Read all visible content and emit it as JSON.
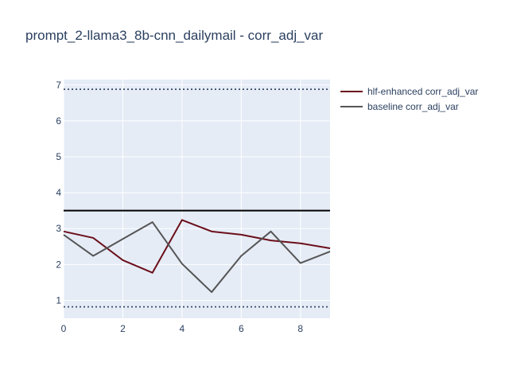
{
  "chart_data": {
    "type": "line",
    "title": "prompt_2-llama3_8b-cnn_dailymail - corr_adj_var",
    "xlabel": "",
    "ylabel": "",
    "xlim": [
      0,
      9
    ],
    "ylim": [
      0.5,
      7.15
    ],
    "x_ticks": [
      0,
      2,
      4,
      6,
      8
    ],
    "y_ticks": [
      1,
      2,
      3,
      4,
      5,
      6,
      7
    ],
    "grid": true,
    "legend_position": "top-right-outside",
    "x": [
      0,
      1,
      2,
      3,
      4,
      5,
      6,
      7,
      8,
      9
    ],
    "series": [
      {
        "name": "hlf-enhanced corr_adj_var",
        "color": "#6b0f1a",
        "values": [
          2.92,
          2.74,
          2.12,
          1.77,
          3.24,
          2.92,
          2.83,
          2.67,
          2.59,
          2.45
        ]
      },
      {
        "name": "baseline corr_adj_var",
        "color": "#555555",
        "values": [
          2.83,
          2.24,
          2.71,
          3.18,
          2.02,
          1.23,
          2.24,
          2.92,
          2.04,
          2.36
        ]
      }
    ],
    "reference_lines": [
      {
        "y": 3.5,
        "style": "solid",
        "color": "#000000"
      },
      {
        "y": 6.88,
        "style": "dotted",
        "color": "#2a3f5f"
      },
      {
        "y": 0.82,
        "style": "dotted",
        "color": "#2a3f5f"
      }
    ],
    "colors": {
      "plot_bg": "#e5ecf6",
      "grid": "#ffffff",
      "text": "#2a3f5f"
    }
  }
}
